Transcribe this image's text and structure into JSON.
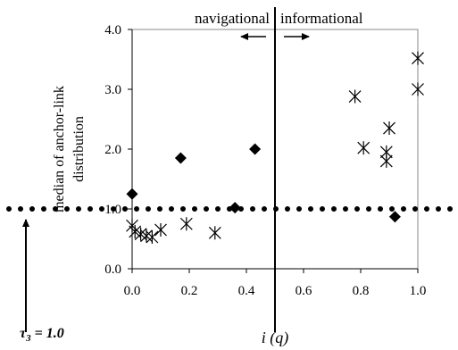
{
  "chart_data": {
    "type": "scatter",
    "title": "",
    "xlabel": "i (q)",
    "ylabel": "median of anchor-link distribution",
    "xlim": [
      0.0,
      1.0
    ],
    "ylim": [
      0.0,
      4.0
    ],
    "x_ticks": [
      "0.0",
      "0.2",
      "0.4",
      "0.6",
      "0.8",
      "1.0"
    ],
    "y_ticks": [
      "0.0",
      "1.0",
      "2.0",
      "3.0",
      "4.0"
    ],
    "grid": false,
    "series": [
      {
        "name": "",
        "marker": "diamond",
        "color": "#000000",
        "points": [
          {
            "x": 0.0,
            "y": 1.25
          },
          {
            "x": 0.17,
            "y": 1.85
          },
          {
            "x": 0.36,
            "y": 1.02
          },
          {
            "x": 0.43,
            "y": 2.0
          },
          {
            "x": 0.92,
            "y": 0.87
          }
        ]
      },
      {
        "name": "",
        "marker": "asterisk",
        "color": "#000000",
        "points": [
          {
            "x": 0.0,
            "y": 0.72
          },
          {
            "x": 0.01,
            "y": 0.62
          },
          {
            "x": 0.03,
            "y": 0.58
          },
          {
            "x": 0.05,
            "y": 0.55
          },
          {
            "x": 0.07,
            "y": 0.53
          },
          {
            "x": 0.1,
            "y": 0.65
          },
          {
            "x": 0.19,
            "y": 0.75
          },
          {
            "x": 0.29,
            "y": 0.6
          },
          {
            "x": 0.78,
            "y": 2.88
          },
          {
            "x": 0.81,
            "y": 2.02
          },
          {
            "x": 0.89,
            "y": 1.95
          },
          {
            "x": 0.89,
            "y": 1.8
          },
          {
            "x": 0.9,
            "y": 2.35
          },
          {
            "x": 1.0,
            "y": 3.0
          },
          {
            "x": 1.0,
            "y": 3.52
          }
        ]
      }
    ],
    "threshold_x": 0.5,
    "threshold_y": 1.0,
    "annotations": {
      "navigational": "navigational",
      "informational": "informational",
      "tau": "τ",
      "tau_sub": "3",
      "tau_value": " = 1.0"
    }
  }
}
